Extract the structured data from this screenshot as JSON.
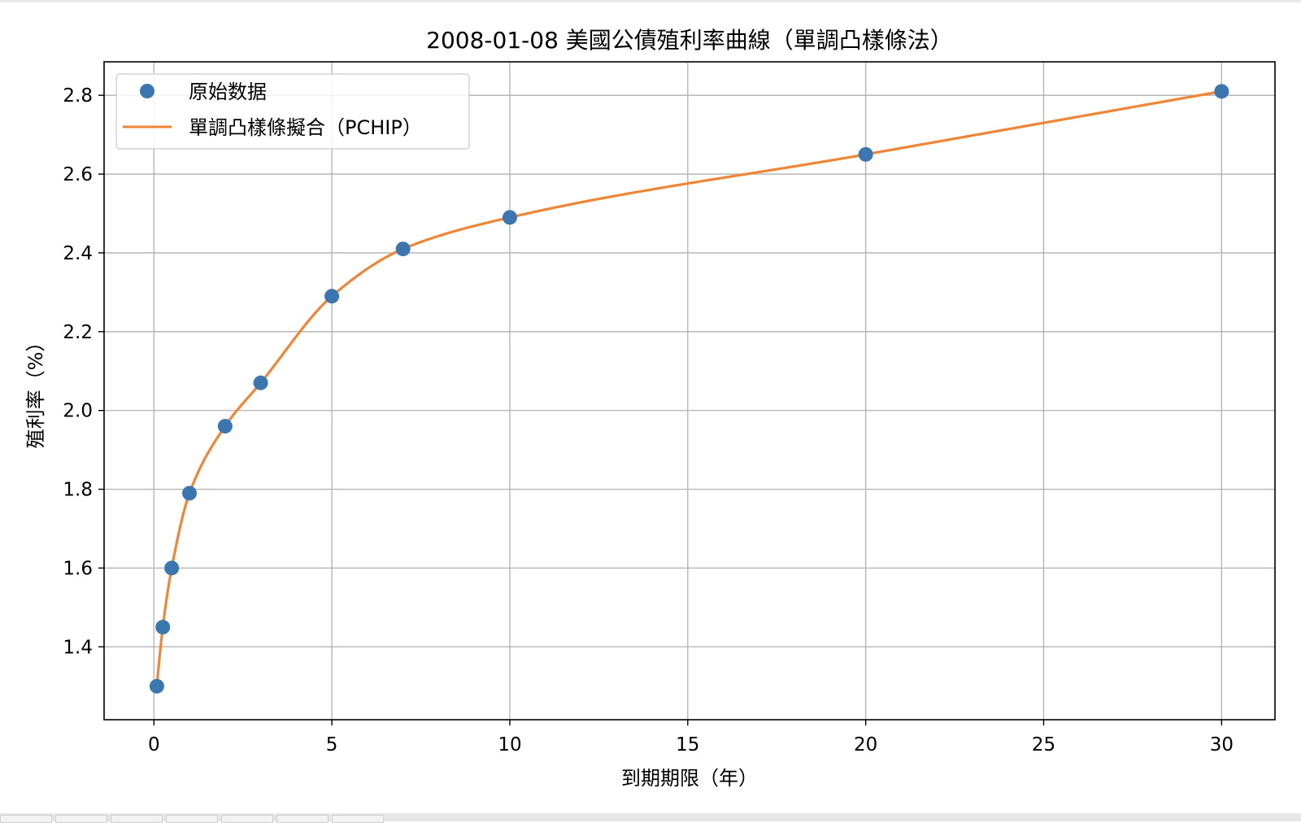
{
  "chart_data": {
    "type": "line",
    "title": "2008-01-08 美國公債殖利率曲線（單調凸樣條法）",
    "xlabel": "到期期限（年）",
    "ylabel": "殖利率（%）",
    "xlim": [
      -1.4,
      31.5
    ],
    "ylim": [
      1.215,
      2.885
    ],
    "xticks": [
      0,
      5,
      10,
      15,
      20,
      25,
      30
    ],
    "yticks": [
      1.4,
      1.6,
      1.8,
      2.0,
      2.2,
      2.4,
      2.6,
      2.8
    ],
    "xtick_labels": [
      "0",
      "5",
      "10",
      "15",
      "20",
      "25",
      "30"
    ],
    "ytick_labels": [
      "1.4",
      "1.6",
      "1.8",
      "2.0",
      "2.2",
      "2.4",
      "2.6",
      "2.8"
    ],
    "grid": true,
    "legend": "top-left",
    "series": [
      {
        "name": "原始数据",
        "kind": "scatter",
        "color": "#3a76af",
        "x": [
          0.083,
          0.25,
          0.5,
          1,
          2,
          3,
          5,
          7,
          10,
          20,
          30
        ],
        "y": [
          1.3,
          1.45,
          1.6,
          1.79,
          1.96,
          2.07,
          2.29,
          2.41,
          2.49,
          2.65,
          2.81
        ]
      },
      {
        "name": "單調凸樣條擬合（PCHIP）",
        "kind": "line",
        "color": "#ef8636",
        "method": "pchip"
      }
    ]
  }
}
